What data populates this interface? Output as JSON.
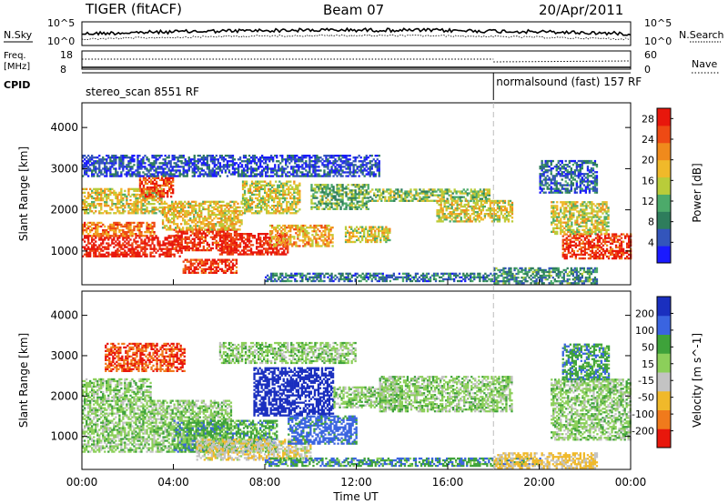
{
  "header": {
    "title": "TIGER (fitACF)",
    "beam": "Beam 07",
    "date": "20/Apr/2011"
  },
  "top_panels": {
    "nsky_label": "N.Sky",
    "nsky_ticks": [
      "10^5",
      "10^0"
    ],
    "nsearch_label": "N.Search",
    "nsearch_ticks": [
      "10^5",
      "10^0"
    ],
    "freq_label": "Freq.",
    "freq_unit": "[MHz]",
    "freq_ticks": [
      "18",
      "8"
    ],
    "nave_label": "Nave",
    "nave_ticks": [
      "60",
      "0"
    ],
    "cpid_label": "CPID",
    "cpid_segments": [
      {
        "label": "stereo_scan 8551 RF",
        "start_hour": 0,
        "end_hour": 18
      },
      {
        "label": "normalsound (fast) 157 RF",
        "start_hour": 18,
        "end_hour": 24
      }
    ]
  },
  "chart_data": [
    {
      "type": "heatmap",
      "panel": "power",
      "ylabel": "Slant Range [km]",
      "xlabel": "Time UT",
      "x_ticks": [
        "00:00",
        "04:00",
        "08:00",
        "12:00",
        "16:00",
        "20:00",
        "00:00"
      ],
      "xlim_hours": [
        0,
        24
      ],
      "y_ticks": [
        1000,
        2000,
        3000,
        4000
      ],
      "ylim": [
        180,
        4600
      ],
      "colorbar": {
        "label": "Power [dB]",
        "ticks": [
          4,
          8,
          12,
          16,
          20,
          24,
          28
        ],
        "range": [
          0,
          30
        ],
        "colors": [
          "#1a1aff",
          "#3355bb",
          "#2e7d5c",
          "#4caa6a",
          "#b9cc3a",
          "#f0b92a",
          "#f08a1c",
          "#ee4a14",
          "#e8170c"
        ]
      },
      "regions": [
        {
          "t": [
            0.0,
            4.4
          ],
          "r": [
            850,
            1350
          ],
          "level": 0.97
        },
        {
          "t": [
            0.0,
            3.2
          ],
          "r": [
            1350,
            1700
          ],
          "level": 0.75
        },
        {
          "t": [
            0.0,
            3.5
          ],
          "r": [
            1900,
            2500
          ],
          "level": 0.55
        },
        {
          "t": [
            2.5,
            4.0
          ],
          "r": [
            2300,
            2800
          ],
          "level": 0.85
        },
        {
          "t": [
            4.0,
            6.8
          ],
          "r": [
            1000,
            1500
          ],
          "level": 0.9
        },
        {
          "t": [
            4.4,
            6.8
          ],
          "r": [
            450,
            800
          ],
          "level": 0.92
        },
        {
          "t": [
            3.5,
            7.0
          ],
          "r": [
            1500,
            2200
          ],
          "level": 0.6
        },
        {
          "t": [
            6.0,
            9.0
          ],
          "r": [
            900,
            1400
          ],
          "level": 0.95
        },
        {
          "t": [
            7.0,
            9.5
          ],
          "r": [
            1900,
            2700
          ],
          "level": 0.55
        },
        {
          "t": [
            8.2,
            11.0
          ],
          "r": [
            1100,
            1600
          ],
          "level": 0.65
        },
        {
          "t": [
            10.0,
            12.5
          ],
          "r": [
            2000,
            2600
          ],
          "level": 0.4
        },
        {
          "t": [
            11.5,
            13.5
          ],
          "r": [
            1200,
            1600
          ],
          "level": 0.55
        },
        {
          "t": [
            12.5,
            17.8
          ],
          "r": [
            2200,
            2500
          ],
          "level": 0.45
        },
        {
          "t": [
            15.5,
            18.8
          ],
          "r": [
            1700,
            2200
          ],
          "level": 0.55
        },
        {
          "t": [
            8.0,
            18.0
          ],
          "r": [
            250,
            450
          ],
          "level": 0.25
        },
        {
          "t": [
            0.0,
            13.0
          ],
          "r": [
            2800,
            3300
          ],
          "level": 0.15
        },
        {
          "t": [
            18.0,
            22.5
          ],
          "r": [
            200,
            600
          ],
          "level": 0.3
        },
        {
          "t": [
            21.0,
            24.0
          ],
          "r": [
            800,
            1400
          ],
          "level": 0.9
        },
        {
          "t": [
            20.5,
            23.0
          ],
          "r": [
            1400,
            2200
          ],
          "level": 0.55
        },
        {
          "t": [
            20.0,
            22.5
          ],
          "r": [
            2400,
            3200
          ],
          "level": 0.2
        }
      ]
    },
    {
      "type": "heatmap",
      "panel": "velocity",
      "ylabel": "Slant Range [km]",
      "xlabel": "Time UT",
      "x_ticks": [
        "00:00",
        "04:00",
        "08:00",
        "12:00",
        "16:00",
        "20:00",
        "00:00"
      ],
      "xlim_hours": [
        0,
        24
      ],
      "y_ticks": [
        1000,
        2000,
        3000,
        4000
      ],
      "ylim": [
        180,
        4600
      ],
      "colorbar": {
        "label": "Velocity [m s^-1]",
        "ticks": [
          200,
          100,
          50,
          15,
          -15,
          -50,
          -100,
          -200
        ],
        "colors": [
          "#1a2fbf",
          "#3a64e0",
          "#3ea23a",
          "#8ccf5a",
          "#c3c3c3",
          "#f0b92a",
          "#f07a1c",
          "#e8170c"
        ]
      },
      "regions": [
        {
          "t": [
            0.0,
            6.5
          ],
          "r": [
            600,
            1900
          ],
          "vel": 0
        },
        {
          "t": [
            0.0,
            3.0
          ],
          "r": [
            1900,
            2400
          ],
          "vel": 0
        },
        {
          "t": [
            1.0,
            4.5
          ],
          "r": [
            2600,
            3300
          ],
          "vel": -200
        },
        {
          "t": [
            4.0,
            8.5
          ],
          "r": [
            600,
            1400
          ],
          "vel": 30
        },
        {
          "t": [
            5.0,
            10.0
          ],
          "r": [
            400,
            900
          ],
          "vel": -40
        },
        {
          "t": [
            7.5,
            11.0
          ],
          "r": [
            1500,
            2700
          ],
          "vel": 200
        },
        {
          "t": [
            9.0,
            12.0
          ],
          "r": [
            800,
            1500
          ],
          "vel": 70
        },
        {
          "t": [
            11.0,
            14.0
          ],
          "r": [
            1700,
            2200
          ],
          "vel": 0
        },
        {
          "t": [
            13.0,
            18.8
          ],
          "r": [
            1600,
            2500
          ],
          "vel": 0
        },
        {
          "t": [
            8.0,
            20.0
          ],
          "r": [
            250,
            450
          ],
          "vel": 40
        },
        {
          "t": [
            18.0,
            22.5
          ],
          "r": [
            200,
            600
          ],
          "vel": -60
        },
        {
          "t": [
            20.5,
            24.0
          ],
          "r": [
            900,
            2400
          ],
          "vel": 0
        },
        {
          "t": [
            21.0,
            23.0
          ],
          "r": [
            2400,
            3300
          ],
          "vel": 40
        },
        {
          "t": [
            6.0,
            12.0
          ],
          "r": [
            2800,
            3300
          ],
          "vel": 0
        }
      ]
    }
  ]
}
